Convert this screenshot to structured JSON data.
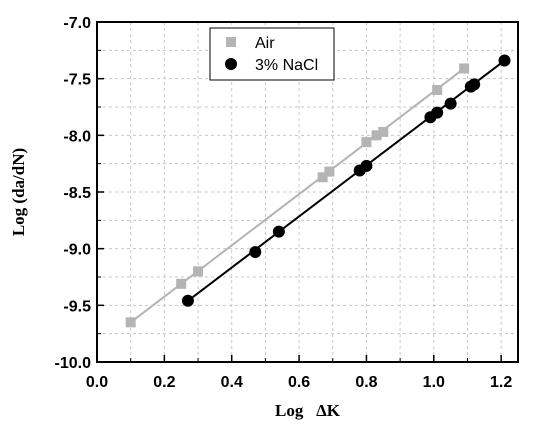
{
  "chart_data": {
    "type": "scatter",
    "title": "",
    "xlabel": "Log   ΔK",
    "ylabel": "Log (da/dN)",
    "xlim": [
      0.0,
      1.25
    ],
    "ylim": [
      -10.0,
      -7.0
    ],
    "x_ticks": [
      0.0,
      0.2,
      0.4,
      0.6,
      0.8,
      1.0,
      1.2
    ],
    "x_tick_labels": [
      "0.0",
      "0.2",
      "0.4",
      "0.6",
      "0.8",
      "1.0",
      "1.2"
    ],
    "y_ticks": [
      -10.0,
      -9.5,
      -9.0,
      -8.5,
      -8.0,
      -7.5,
      -7.0
    ],
    "y_tick_labels": [
      "-10.0",
      "-9.5",
      "-9.0",
      "-8.5",
      "-8.0",
      "-7.5",
      "-7.0"
    ],
    "grid": true,
    "legend_position": "top-left",
    "series": [
      {
        "name": "Air",
        "marker": "square",
        "color": "#b4b4b4",
        "points": [
          [
            0.1,
            -9.65
          ],
          [
            0.25,
            -9.31
          ],
          [
            0.3,
            -9.2
          ],
          [
            0.67,
            -8.37
          ],
          [
            0.69,
            -8.32
          ],
          [
            0.8,
            -8.06
          ],
          [
            0.83,
            -8.0
          ],
          [
            0.85,
            -7.97
          ],
          [
            1.01,
            -7.6
          ],
          [
            1.09,
            -7.41
          ]
        ],
        "fit": [
          [
            0.1,
            -9.65
          ],
          [
            1.09,
            -7.41
          ]
        ]
      },
      {
        "name": "3% NaCl",
        "marker": "circle",
        "color": "#000000",
        "points": [
          [
            0.27,
            -9.46
          ],
          [
            0.47,
            -9.03
          ],
          [
            0.54,
            -8.85
          ],
          [
            0.78,
            -8.31
          ],
          [
            0.8,
            -8.27
          ],
          [
            0.99,
            -7.84
          ],
          [
            1.01,
            -7.8
          ],
          [
            1.05,
            -7.72
          ],
          [
            1.11,
            -7.57
          ],
          [
            1.12,
            -7.55
          ],
          [
            1.21,
            -7.34
          ]
        ],
        "fit": [
          [
            0.27,
            -9.46
          ],
          [
            1.21,
            -7.34
          ]
        ]
      }
    ]
  }
}
